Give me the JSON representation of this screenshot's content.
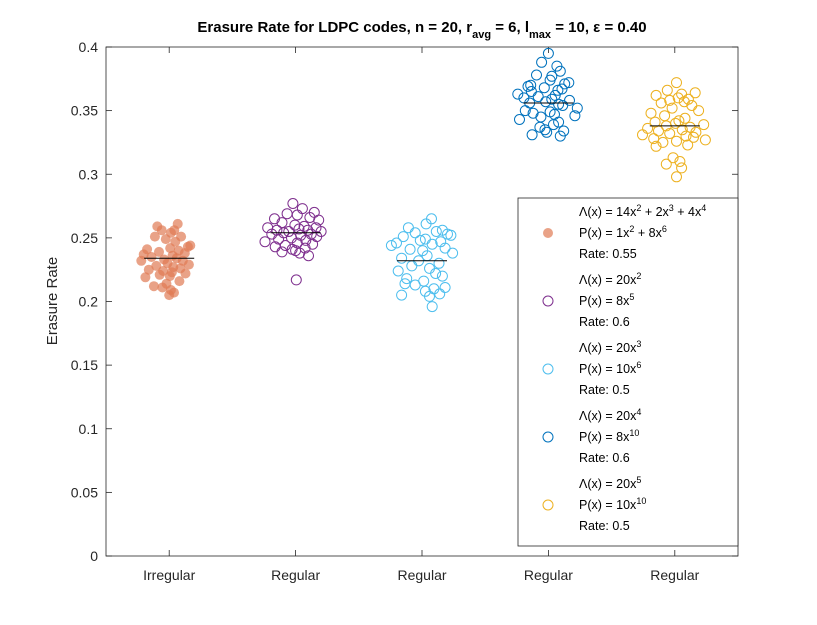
{
  "chart_data": {
    "type": "scatter",
    "title": "Erasure Rate for LDPC codes, n = 20, r",
    "title_parts": [
      "Erasure Rate for LDPC codes, n = 20, r",
      "avg",
      " = 6, l",
      "max",
      " = 10, ε = 0.40"
    ],
    "ylabel": "Erasure Rate",
    "xlabel": "",
    "ylim": [
      0,
      0.4
    ],
    "yticks": [
      "0",
      "0.05",
      "0.1",
      "0.15",
      "0.2",
      "0.25",
      "0.3",
      "0.35",
      "0.4"
    ],
    "categories": [
      "Irregular",
      "Regular",
      "Regular",
      "Regular",
      "Regular"
    ],
    "legend_position": "inside-right",
    "series": [
      {
        "color": "#e07b54",
        "filled": true,
        "mean": 0.234,
        "legend_lines": [
          [
            "Λ(x) = 14x",
            "2",
            " + 2x",
            "3",
            " + 4x",
            "4"
          ],
          [
            "P(x) = 1x",
            "2",
            " + 8x",
            "6"
          ],
          [
            "Rate: 0.55"
          ]
        ],
        "values": [
          0.259,
          0.256,
          0.261,
          0.256,
          0.254,
          0.251,
          0.249,
          0.251,
          0.247,
          0.244,
          0.243,
          0.242,
          0.241,
          0.24,
          0.239,
          0.238,
          0.237,
          0.236,
          0.235,
          0.234,
          0.233,
          0.232,
          0.232,
          0.23,
          0.229,
          0.228,
          0.227,
          0.226,
          0.225,
          0.224,
          0.223,
          0.222,
          0.221,
          0.22,
          0.219,
          0.216,
          0.214,
          0.212,
          0.211,
          0.209,
          0.207,
          0.205
        ],
        "jitter": [
          -0.35,
          0.15,
          0.25,
          -0.22,
          0.05,
          0.35,
          -0.1,
          -0.42,
          0.18,
          0.62,
          0.55,
          0.03,
          -0.65,
          0.28,
          -0.3,
          0.46,
          -0.75,
          0.1,
          -0.52,
          0.22,
          -0.15,
          0.4,
          -0.82,
          -0.05,
          0.58,
          -0.38,
          0.12,
          0.33,
          -0.6,
          -0.18,
          0.08,
          0.48,
          -0.28,
          0.02,
          -0.7,
          0.3,
          -0.08,
          -0.45,
          -0.2,
          0.05,
          0.14,
          0.0
        ]
      },
      {
        "color": "#7e2f8e",
        "filled": false,
        "mean": 0.254,
        "legend_lines": [
          [
            "Λ(x) = 20x",
            "2"
          ],
          [
            "P(x) = 8x",
            "5"
          ],
          [
            "Rate: 0.6"
          ]
        ],
        "values": [
          0.277,
          0.273,
          0.27,
          0.269,
          0.268,
          0.266,
          0.265,
          0.264,
          0.262,
          0.26,
          0.259,
          0.258,
          0.258,
          0.257,
          0.256,
          0.256,
          0.255,
          0.255,
          0.254,
          0.253,
          0.253,
          0.252,
          0.251,
          0.25,
          0.249,
          0.248,
          0.247,
          0.246,
          0.245,
          0.244,
          0.243,
          0.242,
          0.241,
          0.24,
          0.239,
          0.238,
          0.236,
          0.217
        ],
        "jitter": [
          -0.08,
          0.2,
          0.55,
          -0.25,
          0.05,
          0.42,
          -0.62,
          0.68,
          -0.4,
          -0.02,
          0.25,
          -0.82,
          0.6,
          0.1,
          -0.55,
          0.36,
          -0.2,
          0.75,
          -0.35,
          0.46,
          -0.7,
          0.15,
          0.62,
          -0.12,
          -0.5,
          0.3,
          -0.9,
          0.05,
          0.5,
          -0.3,
          -0.6,
          0.28,
          -0.1,
          0.0,
          -0.4,
          0.12,
          0.38,
          0.02
        ]
      },
      {
        "color": "#4dbeee",
        "filled": false,
        "mean": 0.232,
        "legend_lines": [
          [
            "Λ(x) = 20x",
            "3"
          ],
          [
            "P(x) = 10x",
            "6"
          ],
          [
            "Rate: 0.5"
          ]
        ],
        "values": [
          0.265,
          0.261,
          0.258,
          0.256,
          0.255,
          0.254,
          0.253,
          0.252,
          0.251,
          0.249,
          0.248,
          0.247,
          0.246,
          0.245,
          0.244,
          0.242,
          0.241,
          0.24,
          0.238,
          0.236,
          0.234,
          0.232,
          0.23,
          0.228,
          0.226,
          0.224,
          0.222,
          0.22,
          0.218,
          0.216,
          0.214,
          0.213,
          0.211,
          0.21,
          0.208,
          0.206,
          0.205,
          0.204,
          0.196
        ],
        "jitter": [
          0.28,
          0.12,
          -0.4,
          0.6,
          0.42,
          -0.2,
          0.75,
          0.85,
          -0.55,
          0.1,
          -0.05,
          0.55,
          -0.75,
          0.3,
          -0.9,
          0.68,
          -0.35,
          0.02,
          0.9,
          0.15,
          -0.6,
          -0.1,
          0.5,
          -0.3,
          0.22,
          -0.7,
          0.4,
          0.6,
          -0.45,
          0.05,
          -0.5,
          -0.2,
          0.68,
          0.35,
          0.1,
          0.52,
          -0.6,
          0.22,
          0.3
        ]
      },
      {
        "color": "#0072bd",
        "filled": false,
        "mean": 0.356,
        "legend_lines": [
          [
            "Λ(x) = 20x",
            "4"
          ],
          [
            "P(x) = 8x",
            "10"
          ],
          [
            "Rate: 0.6"
          ]
        ],
        "values": [
          0.395,
          0.388,
          0.385,
          0.381,
          0.378,
          0.377,
          0.374,
          0.372,
          0.371,
          0.37,
          0.369,
          0.368,
          0.367,
          0.366,
          0.365,
          0.363,
          0.362,
          0.361,
          0.36,
          0.359,
          0.358,
          0.357,
          0.356,
          0.355,
          0.354,
          0.352,
          0.35,
          0.349,
          0.348,
          0.347,
          0.346,
          0.345,
          0.343,
          0.341,
          0.339,
          0.337,
          0.335,
          0.334,
          0.333,
          0.331,
          0.33
        ],
        "jitter": [
          0.0,
          -0.2,
          0.25,
          0.35,
          -0.35,
          0.1,
          0.05,
          0.6,
          0.48,
          -0.52,
          -0.6,
          -0.12,
          0.4,
          0.28,
          -0.5,
          -0.9,
          0.2,
          -0.3,
          -0.72,
          0.1,
          0.62,
          -0.08,
          -0.55,
          0.3,
          0.42,
          0.85,
          -0.68,
          0.05,
          -0.45,
          0.18,
          0.78,
          -0.22,
          -0.85,
          0.3,
          0.15,
          -0.25,
          -0.1,
          0.45,
          -0.05,
          -0.48,
          0.35
        ]
      },
      {
        "color": "#edb120",
        "filled": false,
        "mean": 0.338,
        "legend_lines": [
          [
            "Λ(x) = 20x",
            "5"
          ],
          [
            "P(x) = 10x",
            "10"
          ],
          [
            "Rate: 0.5"
          ]
        ],
        "values": [
          0.372,
          0.366,
          0.364,
          0.363,
          0.362,
          0.36,
          0.359,
          0.358,
          0.357,
          0.356,
          0.354,
          0.352,
          0.35,
          0.348,
          0.346,
          0.344,
          0.342,
          0.341,
          0.34,
          0.339,
          0.338,
          0.337,
          0.336,
          0.335,
          0.334,
          0.333,
          0.332,
          0.331,
          0.33,
          0.329,
          0.328,
          0.327,
          0.326,
          0.325,
          0.323,
          0.322,
          0.313,
          0.31,
          0.308,
          0.305,
          0.298
        ],
        "jitter": [
          0.05,
          -0.22,
          0.6,
          0.2,
          -0.55,
          0.1,
          0.4,
          -0.15,
          0.28,
          -0.4,
          0.5,
          -0.08,
          0.7,
          -0.7,
          -0.3,
          0.3,
          0.12,
          -0.58,
          0.02,
          0.85,
          -0.25,
          0.45,
          -0.8,
          0.22,
          -0.48,
          0.62,
          -0.15,
          -0.95,
          0.33,
          0.55,
          -0.62,
          0.9,
          0.05,
          -0.35,
          0.38,
          -0.55,
          -0.05,
          0.15,
          -0.25,
          0.2,
          0.05
        ]
      }
    ]
  }
}
